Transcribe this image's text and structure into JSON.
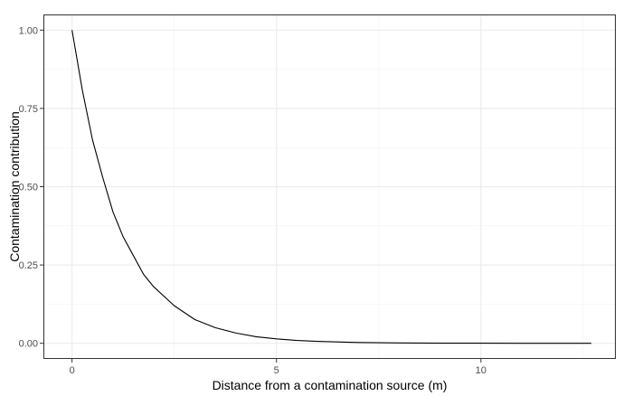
{
  "chart_data": {
    "type": "line",
    "title": "",
    "xlabel": "Distance from a contamination source (m)",
    "ylabel": "Contamination contribution",
    "xlim": [
      -0.7,
      13.3
    ],
    "ylim": [
      -0.05,
      1.05
    ],
    "x_ticks": [
      0,
      5,
      10
    ],
    "x_tick_labels": [
      "0",
      "5",
      "10"
    ],
    "y_ticks": [
      0,
      0.25,
      0.5,
      0.75,
      1.0
    ],
    "y_tick_labels": [
      "0.00",
      "0.25",
      "0.50",
      "0.75",
      "1.00"
    ],
    "grid": true,
    "legend": "none",
    "series": [
      {
        "x": [
          0,
          0.25,
          0.5,
          0.75,
          1.0,
          1.25,
          1.5,
          1.75,
          2.0,
          2.5,
          3.0,
          3.5,
          4.0,
          4.5,
          5.0,
          5.5,
          6.0,
          7.0,
          8.0,
          9.0,
          10.0,
          11.0,
          12.0,
          12.7
        ],
        "y": [
          1.0,
          0.81,
          0.65,
          0.53,
          0.42,
          0.34,
          0.28,
          0.22,
          0.18,
          0.12,
          0.076,
          0.05,
          0.033,
          0.021,
          0.014,
          0.009,
          0.006,
          0.0025,
          0.001,
          0.0004,
          0.0002,
          0.0001,
          0.0,
          0.0
        ],
        "color": "#000000"
      }
    ]
  }
}
